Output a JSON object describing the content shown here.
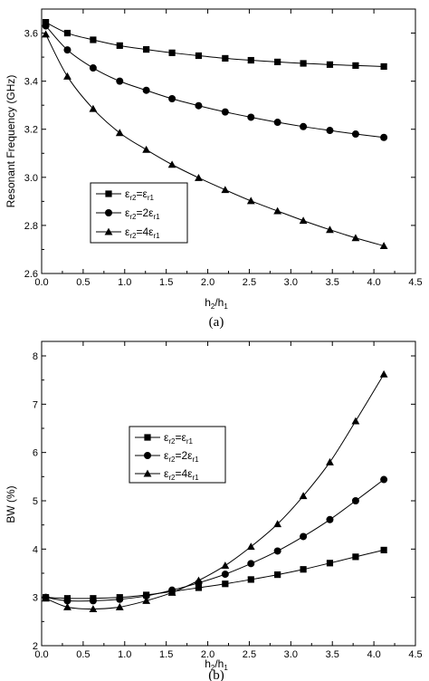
{
  "chart_data": [
    {
      "type": "line",
      "caption": "(a)",
      "xlabel_main": "h",
      "xlabel_sub1": "2",
      "xlabel_mid": "/h",
      "xlabel_sub2": "1",
      "ylabel": "Resonant Frequency (GHz)",
      "xlim": [
        0.0,
        4.5
      ],
      "ylim": [
        2.6,
        3.7
      ],
      "xticks": [
        "0.0",
        "0.5",
        "1.0",
        "1.5",
        "2.0",
        "2.5",
        "3.0",
        "3.5",
        "4.0",
        "4.5"
      ],
      "yticks": [
        "2.6",
        "2.8",
        "3.0",
        "3.2",
        "3.4",
        "3.6"
      ],
      "xtick_values": [
        0,
        0.5,
        1,
        1.5,
        2,
        2.5,
        3,
        3.5,
        4,
        4.5
      ],
      "ytick_values": [
        2.6,
        2.8,
        3.0,
        3.2,
        3.4,
        3.6
      ],
      "legend_position": "lower-left",
      "x": [
        0.05,
        0.31,
        0.62,
        0.94,
        1.26,
        1.57,
        1.89,
        2.21,
        2.52,
        2.84,
        3.15,
        3.47,
        3.78,
        4.12
      ],
      "series": [
        {
          "marker": "square",
          "legend_eps": "ε",
          "sub_a": "r2",
          "eq": "=ε",
          "coef": "",
          "sub_b": "r1",
          "values": [
            3.645,
            3.6,
            3.572,
            3.548,
            3.532,
            3.518,
            3.506,
            3.495,
            3.487,
            3.48,
            3.474,
            3.469,
            3.465,
            3.461
          ]
        },
        {
          "marker": "circle",
          "legend_eps": "ε",
          "sub_a": "r2",
          "eq": "=2ε",
          "coef": "",
          "sub_b": "r1",
          "values": [
            3.63,
            3.53,
            3.455,
            3.4,
            3.362,
            3.327,
            3.298,
            3.272,
            3.25,
            3.229,
            3.211,
            3.195,
            3.18,
            3.166
          ]
        },
        {
          "marker": "triangle",
          "legend_eps": "ε",
          "sub_a": "r2",
          "eq": "=4ε",
          "coef": "",
          "sub_b": "r1",
          "values": [
            3.595,
            3.42,
            3.285,
            3.185,
            3.115,
            3.053,
            2.998,
            2.948,
            2.902,
            2.86,
            2.82,
            2.782,
            2.748,
            2.715
          ]
        }
      ]
    },
    {
      "type": "line",
      "caption": "(b)",
      "xlabel_main": "h",
      "xlabel_sub1": "2",
      "xlabel_mid": "/h",
      "xlabel_sub2": "1",
      "ylabel": "BW (%)",
      "xlim": [
        0.0,
        4.5
      ],
      "ylim": [
        2,
        8.3
      ],
      "xticks": [
        "0.0",
        "0.5",
        "1.0",
        "1.5",
        "2.0",
        "2.5",
        "3.0",
        "3.5",
        "4.0",
        "4.5"
      ],
      "yticks": [
        "2",
        "3",
        "4",
        "5",
        "6",
        "7",
        "8"
      ],
      "xtick_values": [
        0,
        0.5,
        1,
        1.5,
        2,
        2.5,
        3,
        3.5,
        4,
        4.5
      ],
      "ytick_values": [
        2,
        3,
        4,
        5,
        6,
        7,
        8
      ],
      "legend_position": "center",
      "x": [
        0.05,
        0.31,
        0.62,
        0.94,
        1.26,
        1.57,
        1.89,
        2.21,
        2.52,
        2.84,
        3.15,
        3.47,
        3.78,
        4.12
      ],
      "series": [
        {
          "marker": "square",
          "legend_eps": "ε",
          "sub_a": "r2",
          "eq": "=ε",
          "sub_b": "r1",
          "values": [
            3.0,
            2.98,
            2.98,
            3.0,
            3.05,
            3.12,
            3.2,
            3.28,
            3.37,
            3.47,
            3.58,
            3.71,
            3.84,
            3.98
          ]
        },
        {
          "marker": "circle",
          "legend_eps": "ε",
          "sub_a": "r2",
          "eq": "=2ε",
          "sub_b": "r1",
          "values": [
            3.0,
            2.93,
            2.93,
            2.96,
            3.03,
            3.15,
            3.3,
            3.48,
            3.7,
            3.96,
            4.26,
            4.61,
            5.0,
            5.44
          ]
        },
        {
          "marker": "triangle",
          "legend_eps": "ε",
          "sub_a": "r2",
          "eq": "=4ε",
          "sub_b": "r1",
          "values": [
            2.98,
            2.8,
            2.76,
            2.8,
            2.93,
            3.1,
            3.35,
            3.66,
            4.05,
            4.52,
            5.1,
            5.8,
            6.65,
            7.62
          ]
        }
      ]
    }
  ]
}
